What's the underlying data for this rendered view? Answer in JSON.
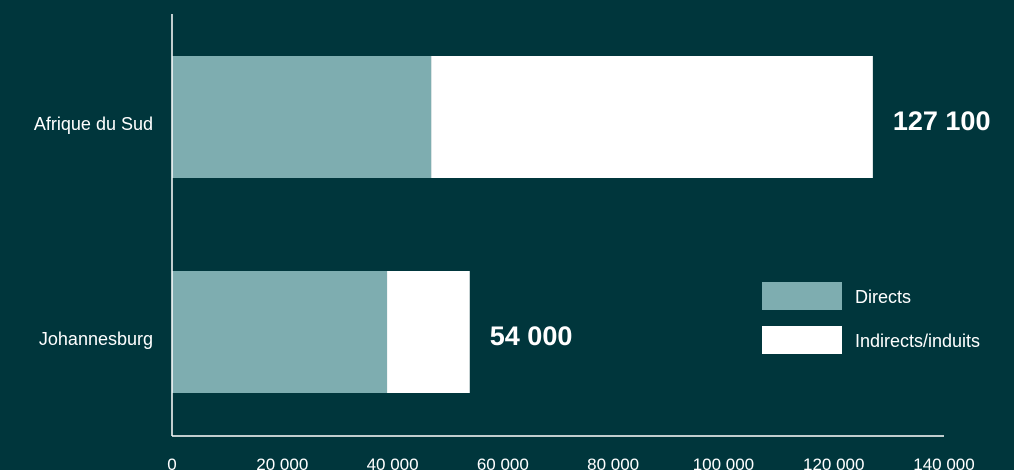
{
  "chart_data": {
    "type": "bar",
    "orientation": "horizontal",
    "stacked": true,
    "categories": [
      "Afrique du Sud",
      "Johannesburg"
    ],
    "series": [
      {
        "name": "Directs",
        "values": [
          47000,
          39000
        ],
        "color": "#7eadb0"
      },
      {
        "name": "Indirects/induits",
        "values": [
          80100,
          15000
        ],
        "color": "#ffffff"
      }
    ],
    "totals": [
      127100,
      54000
    ],
    "total_labels": [
      "127 100",
      "54 000"
    ],
    "xlim": [
      0,
      140000
    ],
    "x_ticks": [
      0,
      20000,
      40000,
      60000,
      80000,
      100000,
      120000,
      140000
    ],
    "x_tick_labels": [
      "0",
      "20 000",
      "40 000",
      "60 000",
      "80 000",
      "100 000",
      "120 000",
      "140 000"
    ],
    "legend": {
      "position": "right",
      "entries": [
        "Directs",
        "Indirects/induits"
      ]
    },
    "grid": false,
    "background_color": "#00363c"
  }
}
